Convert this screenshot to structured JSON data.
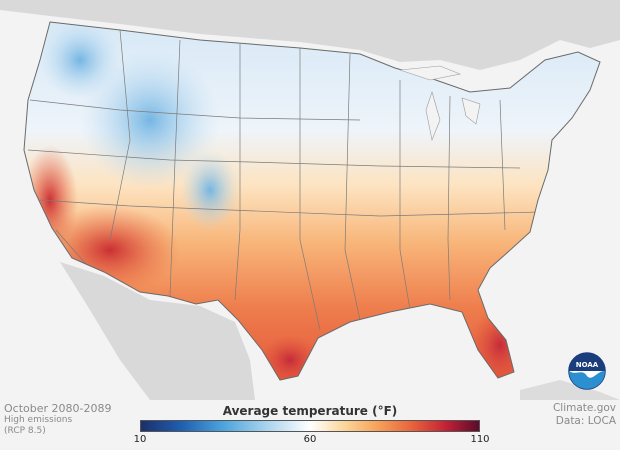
{
  "map": {
    "period": "October 2080-2089",
    "scenario_line1": "High emissions",
    "scenario_line2": "(RCP 8.5)",
    "source_line1": "Climate.gov",
    "source_line2": "Data: LOCA",
    "logo_text": "NOAA"
  },
  "legend": {
    "title": "Average temperature (°F)",
    "min": "10",
    "mid": "60",
    "max": "110",
    "colors": [
      "#1c2f6b",
      "#1f5fb0",
      "#4aa3dc",
      "#a8d3ee",
      "#ffffff",
      "#fbd79a",
      "#f6a25a",
      "#e9643c",
      "#c42335",
      "#5b0b2c"
    ]
  }
}
